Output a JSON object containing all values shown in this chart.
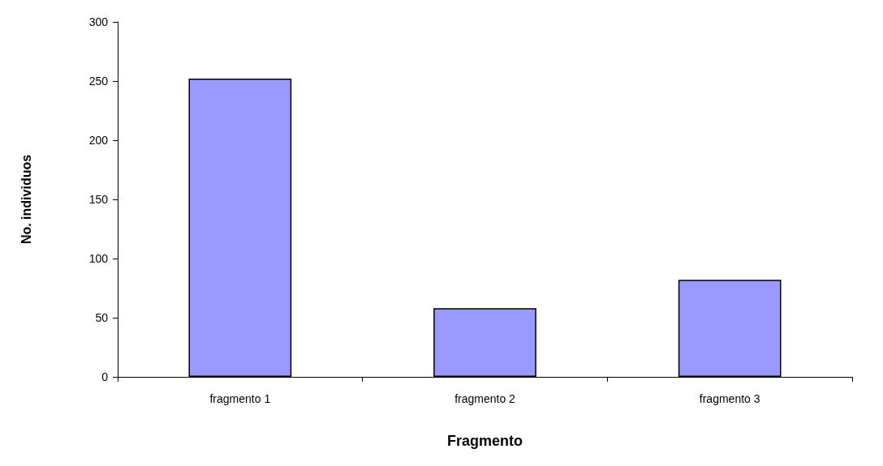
{
  "chart_data": {
    "type": "bar",
    "xlabel": "Fragmento",
    "ylabel": "No. individuos",
    "categories": [
      "fragmento 1",
      "fragmento 2",
      "fragmento 3"
    ],
    "values": [
      252,
      58,
      82
    ],
    "color": "#9999ff",
    "ylim": [
      0,
      300
    ],
    "yticks": [
      0,
      50,
      100,
      150,
      200,
      250,
      300
    ],
    "grid": false
  }
}
